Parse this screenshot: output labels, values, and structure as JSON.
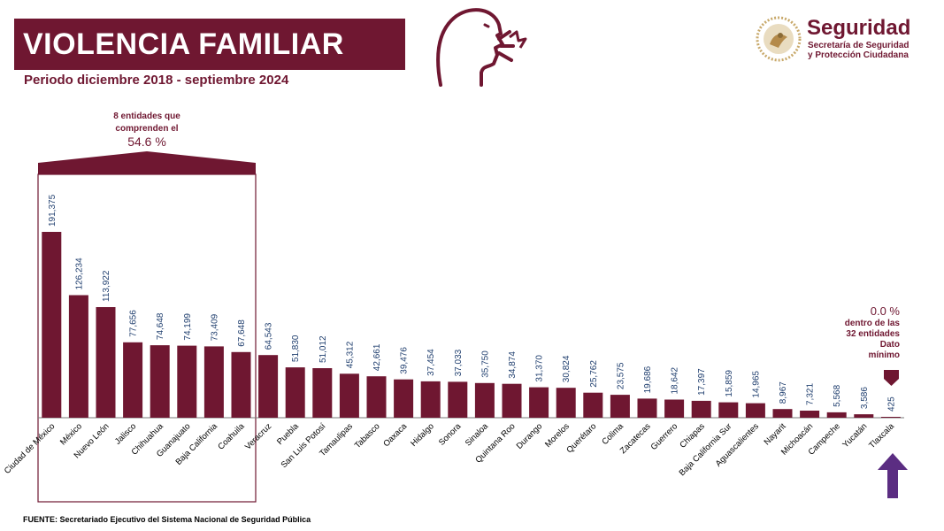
{
  "header": {
    "title": "VIOLENCIA FAMILIAR",
    "subtitle": "Periodo diciembre 2018 - septiembre 2024"
  },
  "logo": {
    "title": "Seguridad",
    "subtitle_line1": "Secretaría de Seguridad",
    "subtitle_line2": "y Protección Ciudadana",
    "seal_icon": "mexican-coat-of-arms-seal"
  },
  "icons": {
    "head": "person-shouting-icon"
  },
  "annotations": {
    "top8_line1": "8 entidades que",
    "top8_line2": "comprenden el",
    "top8_pct": "54.6 %",
    "min_pct": "0.0 %",
    "min_line1": "dentro de las",
    "min_line2": "32 entidades",
    "min_line3": "Dato",
    "min_line4": "mínimo"
  },
  "footer": {
    "source": "FUENTE: Secretariado Ejecutivo del Sistema Nacional de Seguridad Pública"
  },
  "colors": {
    "bar": "#6f1731",
    "label": "#1f3e6e",
    "accent": "#6f1731",
    "arrow": "#5b2d82"
  },
  "chart_data": {
    "type": "bar",
    "title": "VIOLENCIA FAMILIAR",
    "categories": [
      "Ciudad de México",
      "México",
      "Nuevo León",
      "Jalisco",
      "Chihuahua",
      "Guanajuato",
      "Baja California",
      "Coahuila",
      "Veracruz",
      "Puebla",
      "San Luis Potosí",
      "Tamaulipas",
      "Tabasco",
      "Oaxaca",
      "Hidalgo",
      "Sonora",
      "Sinaloa",
      "Quintana Roo",
      "Durango",
      "Morelos",
      "Querétaro",
      "Colima",
      "Zacatecas",
      "Guerrero",
      "Chiapas",
      "Baja California Sur",
      "Aguascalientes",
      "Nayarit",
      "Michoacán",
      "Campeche",
      "Yucatán",
      "Tlaxcala"
    ],
    "values": [
      191375,
      126234,
      113922,
      77656,
      74648,
      74199,
      73409,
      67648,
      64543,
      51830,
      51012,
      45312,
      42661,
      39476,
      37454,
      37033,
      35750,
      34874,
      31370,
      30824,
      25762,
      23575,
      19686,
      18642,
      17397,
      15859,
      14965,
      8967,
      7321,
      5568,
      3586,
      425
    ],
    "value_labels": [
      "191,375",
      "126,234",
      "113,922",
      "77,656",
      "74,648",
      "74,199",
      "73,409",
      "67,648",
      "64,543",
      "51,830",
      "51,012",
      "45,312",
      "42,661",
      "39,476",
      "37,454",
      "37,033",
      "35,750",
      "34,874",
      "31,370",
      "30,824",
      "25,762",
      "23,575",
      "19,686",
      "18,642",
      "17,397",
      "15,859",
      "14,965",
      "8,967",
      "7,321",
      "5,568",
      "3,586",
      "425"
    ],
    "ylim": [
      0,
      200000
    ],
    "xlabel": "",
    "ylabel": "",
    "grid": false
  }
}
